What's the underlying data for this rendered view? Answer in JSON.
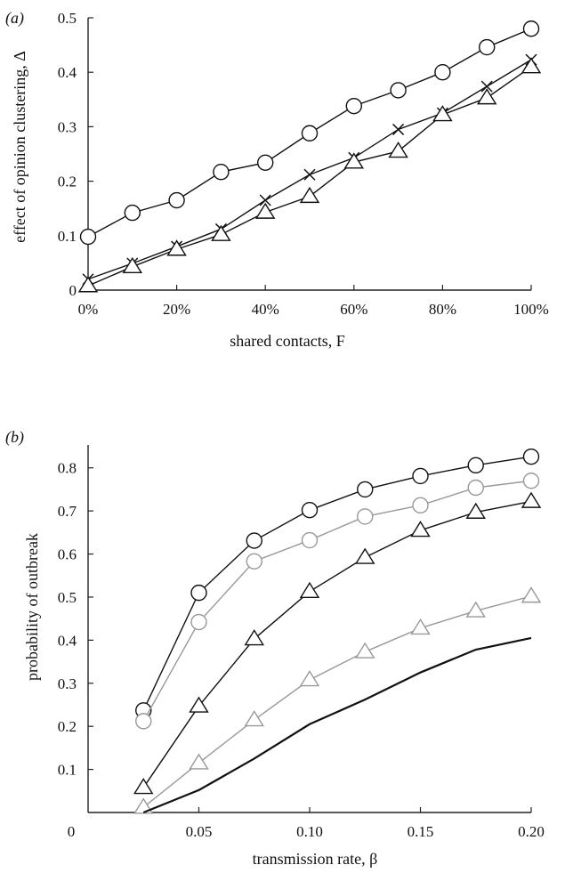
{
  "chart_data": [
    {
      "panel": "(a)",
      "type": "line",
      "xlabel": "shared contacts, F",
      "ylabel": "effect of opinion clustering, Δ",
      "xlim": [
        0,
        100
      ],
      "ylim": [
        0,
        0.5
      ],
      "x": [
        0,
        10,
        20,
        30,
        40,
        50,
        60,
        70,
        80,
        90,
        100
      ],
      "x_tick_labels": [
        "0%",
        "20%",
        "40%",
        "60%",
        "80%",
        "100%"
      ],
      "y_tick_labels": [
        "0",
        "0.1",
        "0.2",
        "0.3",
        "0.4",
        "0.5"
      ],
      "grid": false,
      "series": [
        {
          "marker": "circle",
          "color": "#111111",
          "values": [
            0.098,
            0.142,
            0.165,
            0.217,
            0.234,
            0.288,
            0.338,
            0.367,
            0.4,
            0.446,
            0.48
          ]
        },
        {
          "marker": "cross",
          "color": "#111111",
          "values": [
            0.02,
            0.049,
            0.08,
            0.112,
            0.165,
            0.212,
            0.243,
            0.295,
            0.325,
            0.374,
            0.423
          ]
        },
        {
          "marker": "triangle",
          "color": "#111111",
          "values": [
            0.008,
            0.043,
            0.075,
            0.102,
            0.143,
            0.172,
            0.235,
            0.255,
            0.322,
            0.353,
            0.41
          ]
        }
      ]
    },
    {
      "panel": "(b)",
      "type": "line",
      "xlabel": "transmission rate, β",
      "ylabel": "probability of outbreak",
      "xlim": [
        0,
        0.2
      ],
      "ylim": [
        0,
        0.88
      ],
      "x": [
        0.025,
        0.05,
        0.075,
        0.1,
        0.125,
        0.15,
        0.175,
        0.2
      ],
      "x_tick_labels": [
        "0",
        "0.05",
        "0.10",
        "0.15",
        "0.20"
      ],
      "y_tick_labels": [
        "0.1",
        "0.2",
        "0.3",
        "0.4",
        "0.5",
        "0.6",
        "0.7",
        "0.8"
      ],
      "grid": false,
      "series": [
        {
          "marker": "circle",
          "color": "#111111",
          "values": [
            0.237,
            0.51,
            0.631,
            0.702,
            0.75,
            0.781,
            0.806,
            0.826
          ]
        },
        {
          "marker": "circle",
          "color": "#999999",
          "values": [
            0.212,
            0.442,
            0.583,
            0.632,
            0.687,
            0.713,
            0.754,
            0.77
          ]
        },
        {
          "marker": "triangle",
          "color": "#111111",
          "values": [
            0.058,
            0.247,
            0.403,
            0.513,
            0.592,
            0.655,
            0.697,
            0.722
          ]
        },
        {
          "marker": "triangle",
          "color": "#999999",
          "values": [
            0.012,
            0.115,
            0.215,
            0.308,
            0.373,
            0.428,
            0.468,
            0.502
          ]
        },
        {
          "marker": "none",
          "color": "#111111",
          "values": [
            0.0,
            0.052,
            0.125,
            0.205,
            0.262,
            0.325,
            0.378,
            0.405
          ]
        }
      ]
    }
  ]
}
